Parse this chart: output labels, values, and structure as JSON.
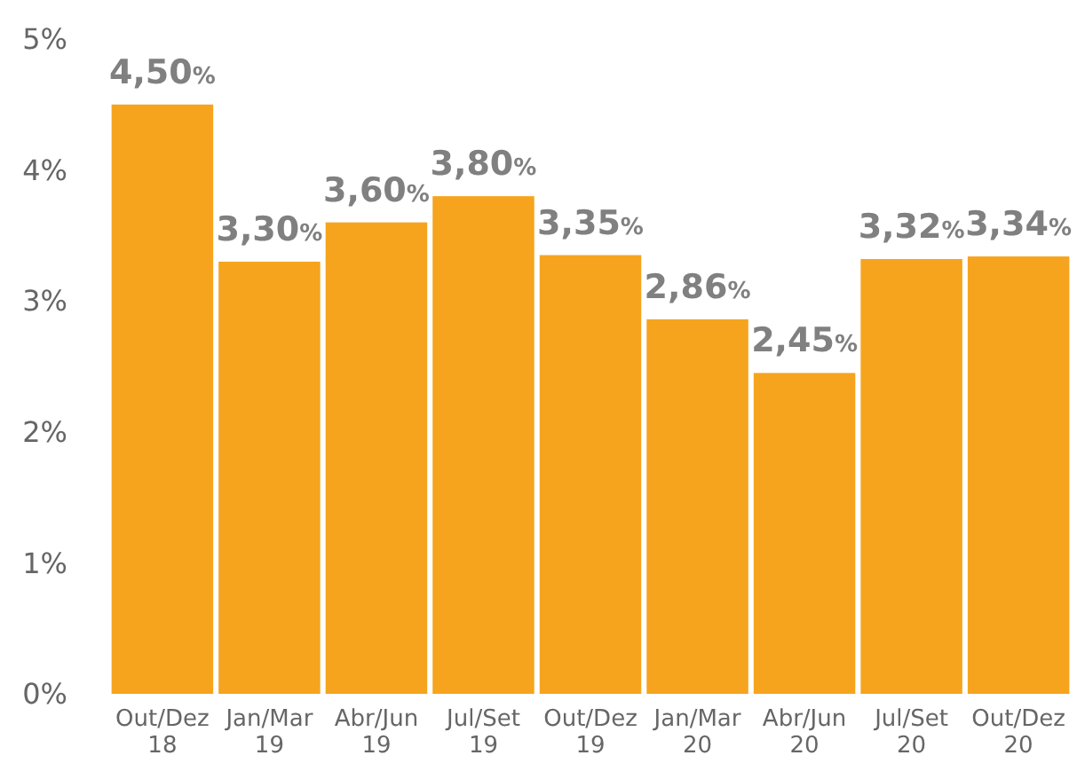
{
  "chart_data": {
    "type": "bar",
    "categories": [
      "Out/Dez 18",
      "Jan/Mar 19",
      "Abr/Jun 19",
      "Jul/Set 19",
      "Out/Dez 19",
      "Jan/Mar 20",
      "Abr/Jun 20",
      "Jul/Set 20",
      "Out/Dez 20"
    ],
    "values": [
      4.5,
      3.3,
      3.6,
      3.8,
      3.35,
      2.86,
      2.45,
      3.32,
      3.34
    ],
    "value_labels": [
      "4,50%",
      "3,30%",
      "3,60%",
      "3,80%",
      "3,35%",
      "2,86%",
      "2,45%",
      "3,32%",
      "3,34%"
    ],
    "color": "#f6a41e",
    "ylim": [
      0,
      5
    ],
    "yticks": [
      {
        "value": 0,
        "label": "0%"
      },
      {
        "value": 1,
        "label": "1%"
      },
      {
        "value": 2,
        "label": "2%"
      },
      {
        "value": 3,
        "label": "3%"
      },
      {
        "value": 4,
        "label": "4%"
      },
      {
        "value": 5,
        "label": "5%"
      }
    ]
  }
}
